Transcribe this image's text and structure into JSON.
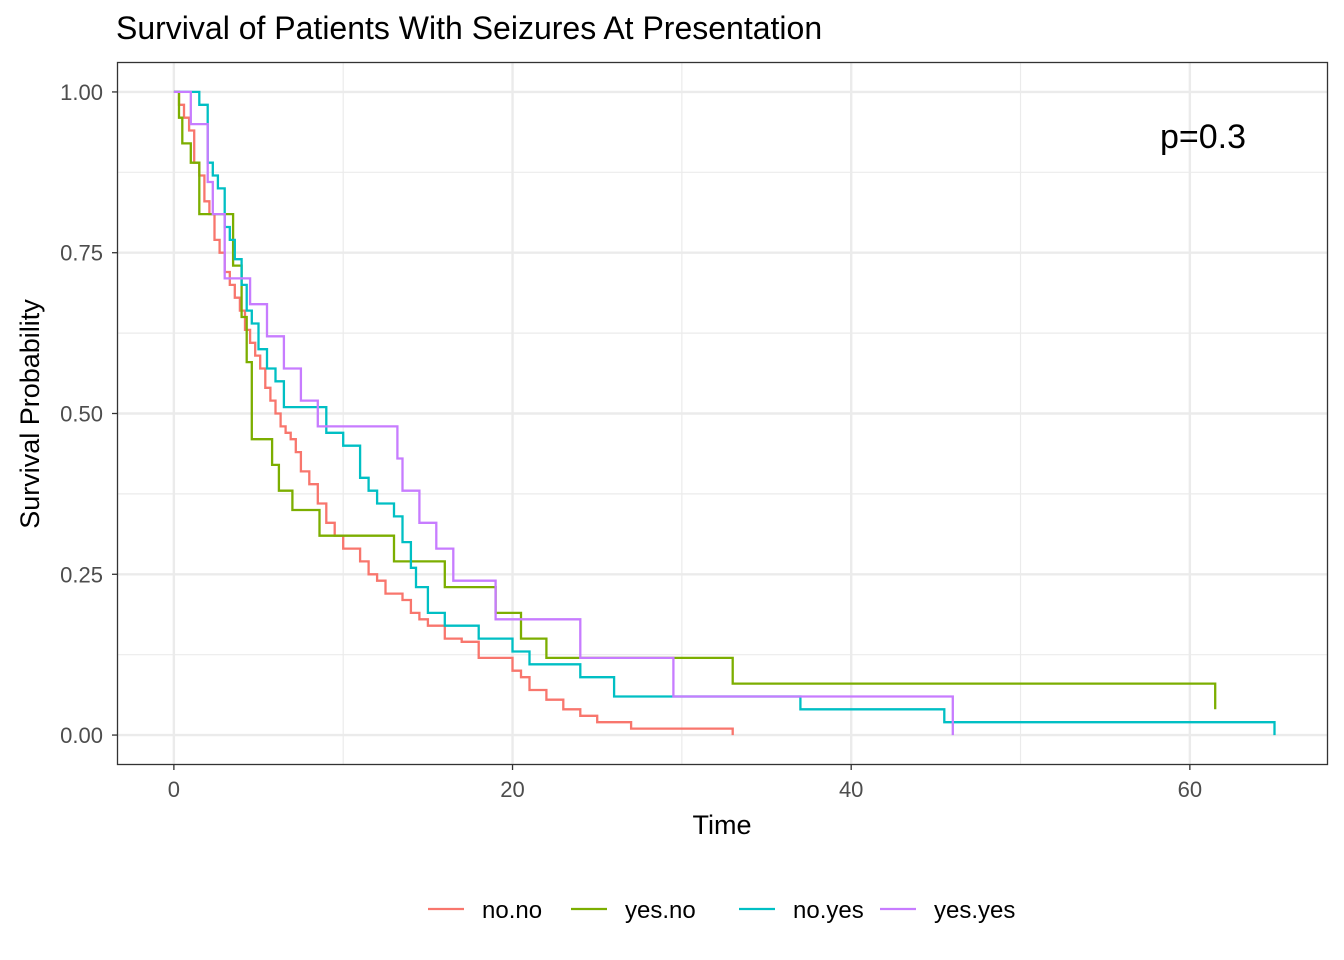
{
  "chart_data": {
    "type": "line",
    "title": "Survival of Patients With Seizures At Presentation",
    "xlabel": "Time",
    "ylabel": "Survival Probability",
    "xlim": [
      -3.3,
      68.1
    ],
    "ylim": [
      -0.045,
      1.045
    ],
    "x_ticks": [
      0,
      20,
      40,
      60
    ],
    "y_ticks": [
      0,
      0.25,
      0.5,
      0.75,
      1
    ],
    "x_tick_labels": [
      "0",
      "20",
      "40",
      "60"
    ],
    "y_tick_labels": [
      "0.00",
      "0.25",
      "0.50",
      "0.75",
      "1.00"
    ],
    "grid": true,
    "legend_position": "bottom",
    "annotation": "p=0.3",
    "series": [
      {
        "name": "no.no",
        "color": "#F8766D",
        "x": [
          0,
          0.3,
          0.6,
          0.9,
          1.2,
          1.5,
          1.8,
          2.1,
          2.4,
          2.7,
          3.0,
          3.3,
          3.6,
          3.9,
          4.2,
          4.5,
          4.8,
          5.1,
          5.4,
          5.7,
          6.0,
          6.3,
          6.6,
          6.9,
          7.2,
          7.5,
          8.0,
          8.5,
          9.0,
          9.5,
          10.0,
          11.0,
          11.5,
          12.0,
          12.5,
          13.5,
          14.0,
          14.5,
          15.0,
          16.0,
          17.0,
          18.0,
          20.0,
          20.5,
          21.0,
          22.0,
          23.0,
          24.0,
          25.0,
          27.0,
          28.0,
          33.0
        ],
        "y": [
          1.0,
          0.98,
          0.96,
          0.94,
          0.89,
          0.87,
          0.83,
          0.81,
          0.77,
          0.75,
          0.72,
          0.7,
          0.68,
          0.66,
          0.63,
          0.61,
          0.59,
          0.57,
          0.54,
          0.52,
          0.5,
          0.48,
          0.47,
          0.46,
          0.44,
          0.41,
          0.39,
          0.36,
          0.33,
          0.31,
          0.29,
          0.27,
          0.25,
          0.24,
          0.22,
          0.21,
          0.19,
          0.18,
          0.17,
          0.15,
          0.145,
          0.12,
          0.1,
          0.09,
          0.07,
          0.055,
          0.04,
          0.03,
          0.02,
          0.01,
          0.01,
          0.0
        ]
      },
      {
        "name": "yes.no",
        "color": "#7CAE00",
        "x": [
          0,
          0.3,
          0.5,
          1.0,
          1.5,
          2.0,
          3.5,
          4.0,
          4.3,
          4.6,
          5.8,
          6.2,
          7.0,
          8.6,
          11.0,
          13.0,
          14.0,
          16.0,
          19.0,
          20.5,
          22.0,
          33.0,
          61.5
        ],
        "y": [
          1.0,
          0.96,
          0.92,
          0.89,
          0.81,
          0.81,
          0.73,
          0.65,
          0.58,
          0.46,
          0.42,
          0.38,
          0.35,
          0.31,
          0.31,
          0.27,
          0.27,
          0.23,
          0.19,
          0.15,
          0.12,
          0.08,
          0.04
        ]
      },
      {
        "name": "no.yes",
        "color": "#00BFC4",
        "x": [
          0,
          1.5,
          2.0,
          2.3,
          2.6,
          3.0,
          3.3,
          3.6,
          4.0,
          4.3,
          4.6,
          5.0,
          5.5,
          6.0,
          6.5,
          8.0,
          9.0,
          10.0,
          11.0,
          11.5,
          12.0,
          13.0,
          13.5,
          14.0,
          14.3,
          15.0,
          16.0,
          18.0,
          20.0,
          21.0,
          24.0,
          26.0,
          37.0,
          45.5,
          65.0
        ],
        "y": [
          1.0,
          0.98,
          0.89,
          0.87,
          0.85,
          0.79,
          0.77,
          0.74,
          0.7,
          0.66,
          0.64,
          0.6,
          0.57,
          0.55,
          0.51,
          0.51,
          0.47,
          0.45,
          0.4,
          0.38,
          0.36,
          0.34,
          0.3,
          0.26,
          0.23,
          0.19,
          0.17,
          0.15,
          0.13,
          0.11,
          0.09,
          0.06,
          0.04,
          0.02,
          0.0
        ]
      },
      {
        "name": "yes.yes",
        "color": "#C77CFF",
        "x": [
          0,
          1.0,
          2.0,
          2.3,
          3.0,
          4.0,
          4.5,
          5.5,
          6.5,
          7.5,
          8.5,
          13.2,
          13.5,
          14.5,
          15.5,
          16.5,
          19.0,
          24.0,
          29.5,
          46.0
        ],
        "y": [
          1.0,
          0.95,
          0.86,
          0.81,
          0.71,
          0.71,
          0.67,
          0.62,
          0.57,
          0.52,
          0.48,
          0.43,
          0.38,
          0.33,
          0.29,
          0.24,
          0.18,
          0.12,
          0.06,
          0.0
        ]
      }
    ]
  }
}
